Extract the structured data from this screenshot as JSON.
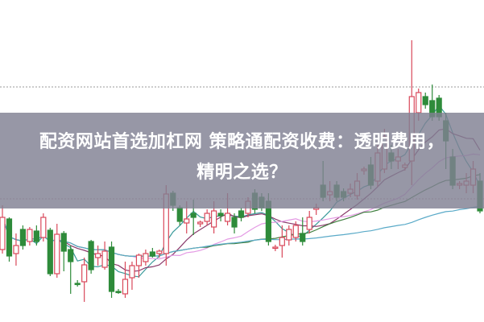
{
  "headline": {
    "line1": "配资网站首选加杠网 策略通配资收费：透明费用，",
    "line2": "精明之选？"
  },
  "colors": {
    "up": "#d9485a",
    "down": "#2e8b3a",
    "band": "#80809a",
    "ma_lines": [
      "#3a9a9a",
      "#8b3a6b",
      "#e49ae4",
      "#3f7f3f",
      "#5aaac8"
    ]
  },
  "chart_data": {
    "type": "candlestick",
    "title": "",
    "xlabel": "",
    "ylabel": "",
    "axes_visible": false,
    "grid": "two dotted horizontal lines",
    "moving_averages": [
      5,
      10,
      20,
      30,
      60
    ],
    "candles_ohlc": [
      [
        90,
        145,
        85,
        130
      ],
      [
        128,
        130,
        75,
        82
      ],
      [
        85,
        110,
        70,
        95
      ],
      [
        115,
        120,
        90,
        95
      ],
      [
        100,
        118,
        95,
        115
      ],
      [
        113,
        120,
        95,
        100
      ],
      [
        105,
        135,
        100,
        130
      ],
      [
        114,
        117,
        57,
        60
      ],
      [
        60,
        122,
        55,
        109
      ],
      [
        110,
        113,
        63,
        88
      ],
      [
        90,
        95,
        35,
        75
      ],
      [
        48,
        52,
        44,
        47
      ],
      [
        50,
        80,
        25,
        71
      ],
      [
        100,
        102,
        60,
        65
      ],
      [
        80,
        95,
        70,
        85
      ],
      [
        68,
        100,
        65,
        88
      ],
      [
        93,
        100,
        30,
        38
      ],
      [
        38,
        41,
        35,
        37
      ],
      [
        35,
        75,
        30,
        53
      ],
      [
        55,
        75,
        40,
        70
      ],
      [
        70,
        85,
        55,
        83
      ],
      [
        75,
        90,
        70,
        85
      ],
      [
        87,
        92,
        80,
        82
      ],
      [
        85,
        90,
        80,
        88
      ],
      [
        85,
        170,
        70,
        159
      ],
      [
        160,
        163,
        138,
        145
      ],
      [
        142,
        145,
        120,
        125
      ],
      [
        123,
        150,
        110,
        128
      ],
      [
        135,
        152,
        108,
        130
      ],
      [
        122,
        126,
        118,
        124
      ],
      [
        125,
        140,
        120,
        135
      ],
      [
        118,
        150,
        110,
        138
      ],
      [
        135,
        140,
        125,
        132
      ],
      [
        125,
        160,
        120,
        135
      ],
      [
        130,
        135,
        110,
        118
      ],
      [
        138,
        142,
        125,
        130
      ],
      [
        135,
        155,
        130,
        150
      ],
      [
        160,
        165,
        135,
        140
      ],
      [
        155,
        160,
        138,
        142
      ],
      [
        150,
        160,
        95,
        100
      ],
      [
        92,
        96,
        88,
        93
      ],
      [
        95,
        120,
        80,
        105
      ],
      [
        102,
        120,
        95,
        115
      ],
      [
        105,
        125,
        100,
        120
      ],
      [
        110,
        130,
        95,
        100
      ],
      [
        115,
        138,
        110,
        130
      ],
      [
        140,
        147,
        133,
        142
      ],
      [
        170,
        200,
        150,
        155
      ],
      [
        158,
        175,
        150,
        162
      ],
      [
        170,
        175,
        150,
        155
      ],
      [
        162,
        166,
        150,
        155
      ],
      [
        160,
        172,
        155,
        165
      ],
      [
        157,
        185,
        152,
        175
      ],
      [
        188,
        193,
        183,
        190
      ],
      [
        195,
        205,
        165,
        170
      ],
      [
        175,
        220,
        168,
        210
      ],
      [
        190,
        240,
        185,
        230
      ],
      [
        210,
        220,
        190,
        200
      ],
      [
        200,
        215,
        190,
        205
      ],
      [
        192,
        198,
        188,
        195
      ],
      [
        200,
        350,
        170,
        280
      ],
      [
        260,
        290,
        250,
        285
      ],
      [
        280,
        285,
        265,
        270
      ],
      [
        275,
        295,
        250,
        255
      ],
      [
        278,
        282,
        250,
        255
      ],
      [
        250,
        260,
        190,
        225
      ],
      [
        205,
        215,
        165,
        170
      ],
      [
        170,
        175,
        165,
        172
      ],
      [
        170,
        185,
        160,
        175
      ],
      [
        170,
        200,
        160,
        190
      ],
      [
        175,
        185,
        135,
        138
      ]
    ]
  }
}
